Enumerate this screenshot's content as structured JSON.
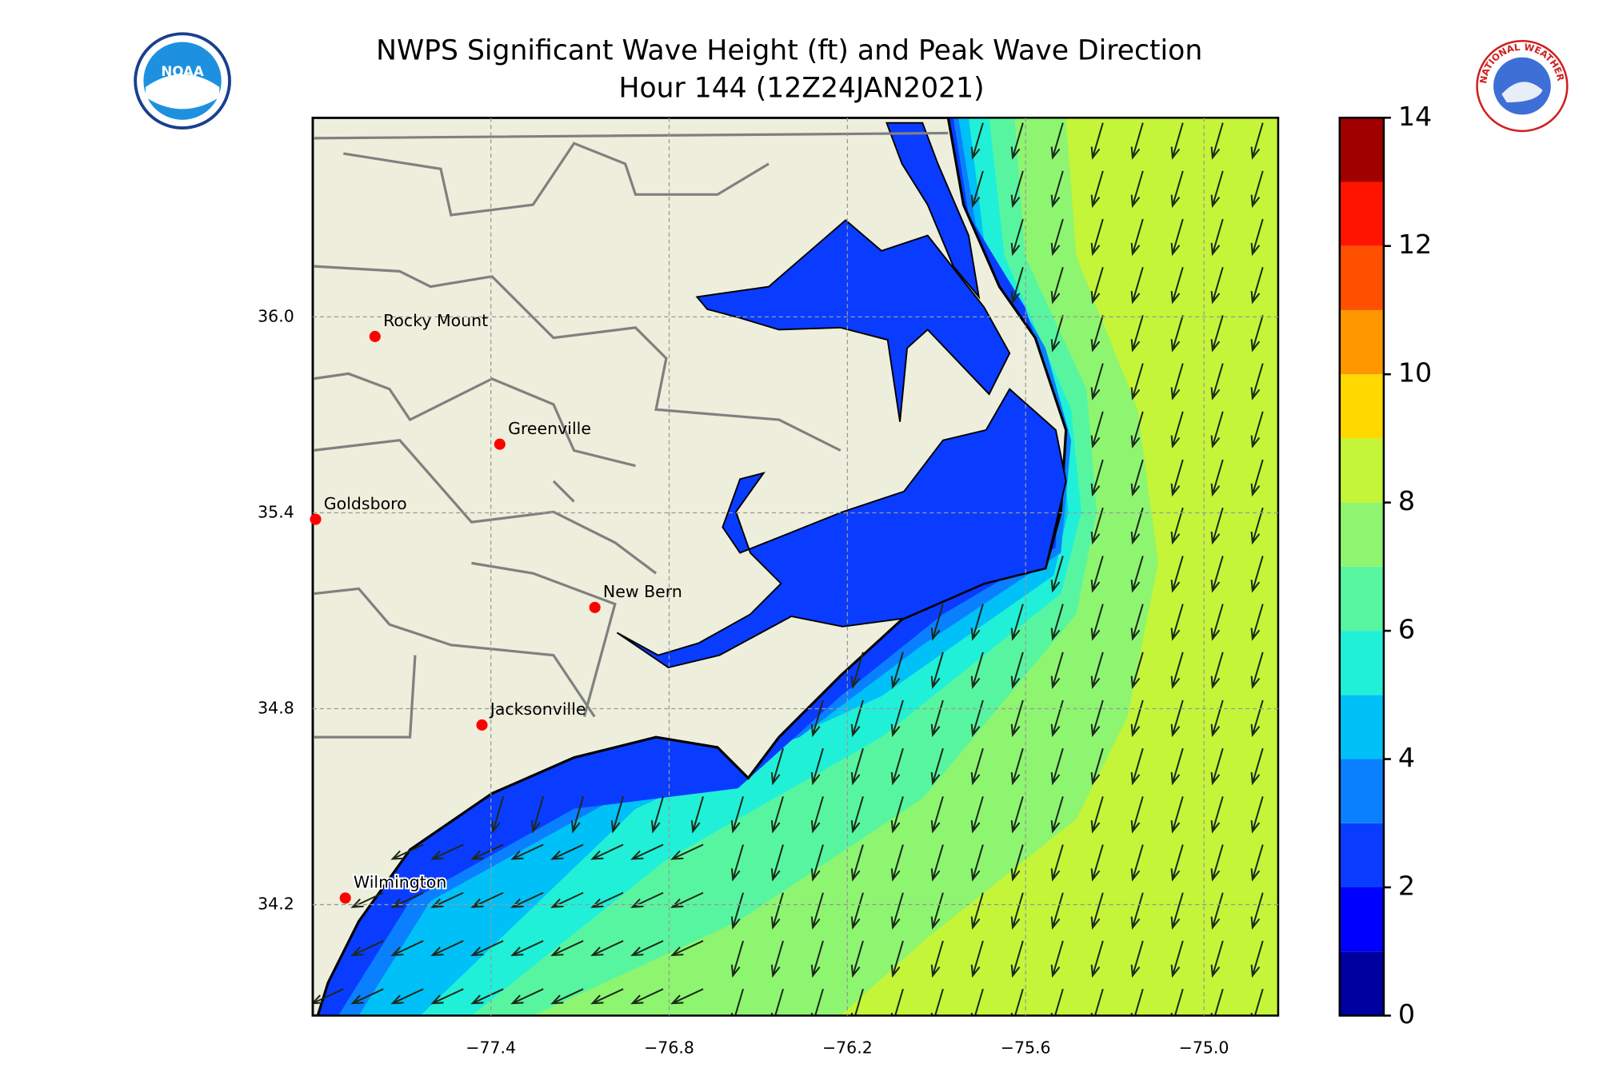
{
  "chart_data": {
    "type": "contour_map",
    "title": "NWPS Significant Wave Height (ft) and Peak Wave Direction",
    "subtitle": "Hour 144 (12Z24JAN2021)",
    "logos": {
      "left": "NOAA",
      "right": "NATIONAL WEATHER SERVICE"
    },
    "xlim": [
      -78.0,
      -74.75
    ],
    "ylim": [
      33.86,
      36.61
    ],
    "xticks": [
      {
        "value": -77.4,
        "label": "−77.4"
      },
      {
        "value": -76.8,
        "label": "−76.8"
      },
      {
        "value": -76.2,
        "label": "−76.2"
      },
      {
        "value": -75.6,
        "label": "−75.6"
      },
      {
        "value": -75.0,
        "label": "−75.0"
      }
    ],
    "yticks": [
      {
        "value": 36.0,
        "label": "36.0"
      },
      {
        "value": 35.4,
        "label": "35.4"
      },
      {
        "value": 34.8,
        "label": "34.8"
      },
      {
        "value": 34.2,
        "label": "34.2"
      }
    ],
    "grid": true,
    "cities": [
      {
        "name": "Rocky Mount",
        "lon": -77.79,
        "lat": 35.94
      },
      {
        "name": "Greenville",
        "lon": -77.37,
        "lat": 35.61
      },
      {
        "name": "Goldsboro",
        "lon": -77.99,
        "lat": 35.38
      },
      {
        "name": "New Bern",
        "lon": -77.05,
        "lat": 35.11
      },
      {
        "name": "Jacksonville",
        "lon": -77.43,
        "lat": 34.75
      },
      {
        "name": "Wilmington",
        "lon": -77.89,
        "lat": 34.22
      }
    ],
    "city_color": "#ff0000",
    "colorbar": {
      "clim": [
        0,
        14
      ],
      "ticks": [
        0,
        2,
        4,
        6,
        8,
        10,
        12,
        14
      ],
      "colors": [
        "#0000a0",
        "#0000ff",
        "#0a3cff",
        "#0a80ff",
        "#00c0f8",
        "#20f0d8",
        "#58f5a0",
        "#8ef570",
        "#c4f538",
        "#ffd800",
        "#ff9800",
        "#ff5000",
        "#ff1400",
        "#a00000"
      ]
    }
  }
}
